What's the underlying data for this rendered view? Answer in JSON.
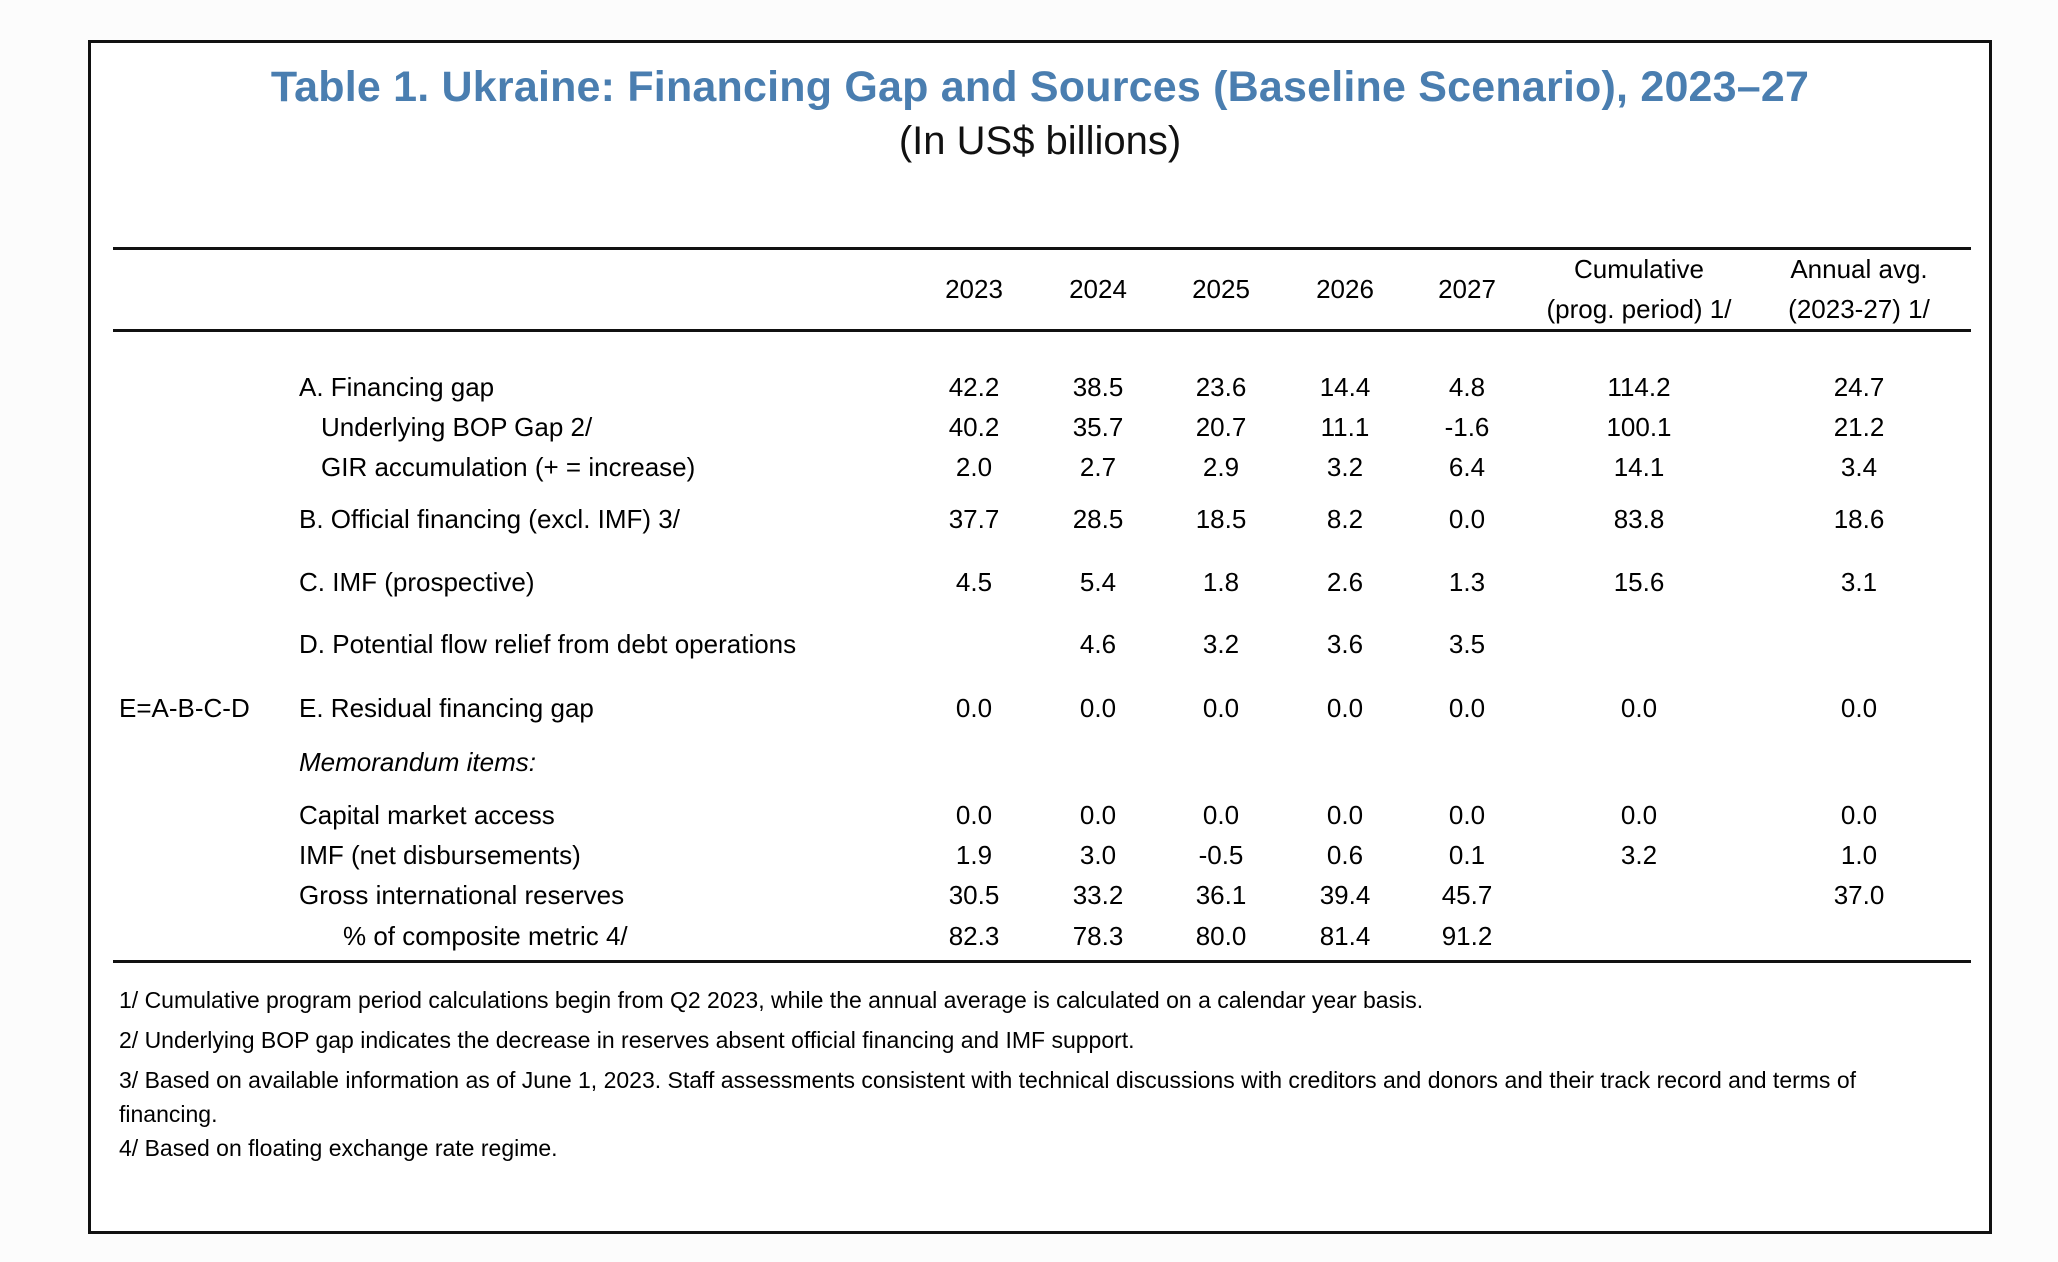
{
  "table": {
    "title": "Table 1. Ukraine: Financing Gap and Sources (Baseline Scenario), 2023–27",
    "subtitle": "(In US$ billions)",
    "columns": [
      "2023",
      "2024",
      "2025",
      "2026",
      "2027",
      "Cumulative\n(prog. period) 1/",
      "Annual avg.\n(2023-27) 1/"
    ],
    "rows": [
      {
        "prefix": "",
        "label": "A. Financing gap",
        "indent": 0,
        "values": [
          "42.2",
          "38.5",
          "23.6",
          "14.4",
          "4.8",
          "114.2",
          "24.7"
        ]
      },
      {
        "prefix": "",
        "label": "Underlying BOP Gap 2/",
        "indent": 2,
        "values": [
          "40.2",
          "35.7",
          "20.7",
          "11.1",
          "-1.6",
          "100.1",
          "21.2"
        ]
      },
      {
        "prefix": "",
        "label": "GIR accumulation (+ = increase)",
        "indent": 2,
        "values": [
          "2.0",
          "2.7",
          "2.9",
          "3.2",
          "6.4",
          "14.1",
          "3.4"
        ]
      },
      {
        "prefix": "",
        "label": "B. Official financing (excl. IMF) 3/",
        "indent": 0,
        "values": [
          "37.7",
          "28.5",
          "18.5",
          "8.2",
          "0.0",
          "83.8",
          "18.6"
        ]
      },
      {
        "prefix": "",
        "label": "C. IMF (prospective)",
        "indent": 0,
        "values": [
          "4.5",
          "5.4",
          "1.8",
          "2.6",
          "1.3",
          "15.6",
          "3.1"
        ]
      },
      {
        "prefix": "",
        "label": "D. Potential flow relief from debt operations",
        "indent": 0,
        "values": [
          "",
          "4.6",
          "3.2",
          "3.6",
          "3.5",
          "",
          ""
        ]
      },
      {
        "prefix": "E=A-B-C-D",
        "label": "E. Residual financing gap",
        "indent": 0,
        "values": [
          "0.0",
          "0.0",
          "0.0",
          "0.0",
          "0.0",
          "0.0",
          "0.0"
        ]
      },
      {
        "prefix": "",
        "label": "Memorandum items:",
        "indent": 0,
        "italic": true,
        "values": [
          "",
          "",
          "",
          "",
          "",
          "",
          ""
        ]
      },
      {
        "prefix": "",
        "label": "Capital market access",
        "indent": 0,
        "values": [
          "0.0",
          "0.0",
          "0.0",
          "0.0",
          "0.0",
          "0.0",
          "0.0"
        ]
      },
      {
        "prefix": "",
        "label": "IMF (net disbursements)",
        "indent": 0,
        "values": [
          "1.9",
          "3.0",
          "-0.5",
          "0.6",
          "0.1",
          "3.2",
          "1.0"
        ]
      },
      {
        "prefix": "",
        "label": "Gross international reserves",
        "indent": 0,
        "values": [
          "30.5",
          "33.2",
          "36.1",
          "39.4",
          "45.7",
          "",
          "37.0"
        ]
      },
      {
        "prefix": "",
        "label": "% of composite metric 4/",
        "indent": 1,
        "values": [
          "82.3",
          "78.3",
          "80.0",
          "81.4",
          "91.2",
          "",
          ""
        ]
      }
    ],
    "footnotes": [
      "1/ Cumulative program period calculations begin from Q2 2023, while the annual average is calculated on a calendar year basis.",
      "2/ Underlying BOP gap indicates the decrease in reserves absent official financing and IMF support.",
      "3/ Based on available information as of June 1, 2023. Staff assessments consistent with technical discussions with creditors and donors and their track record and terms of financing.",
      "4/ Based on floating exchange rate regime."
    ]
  }
}
